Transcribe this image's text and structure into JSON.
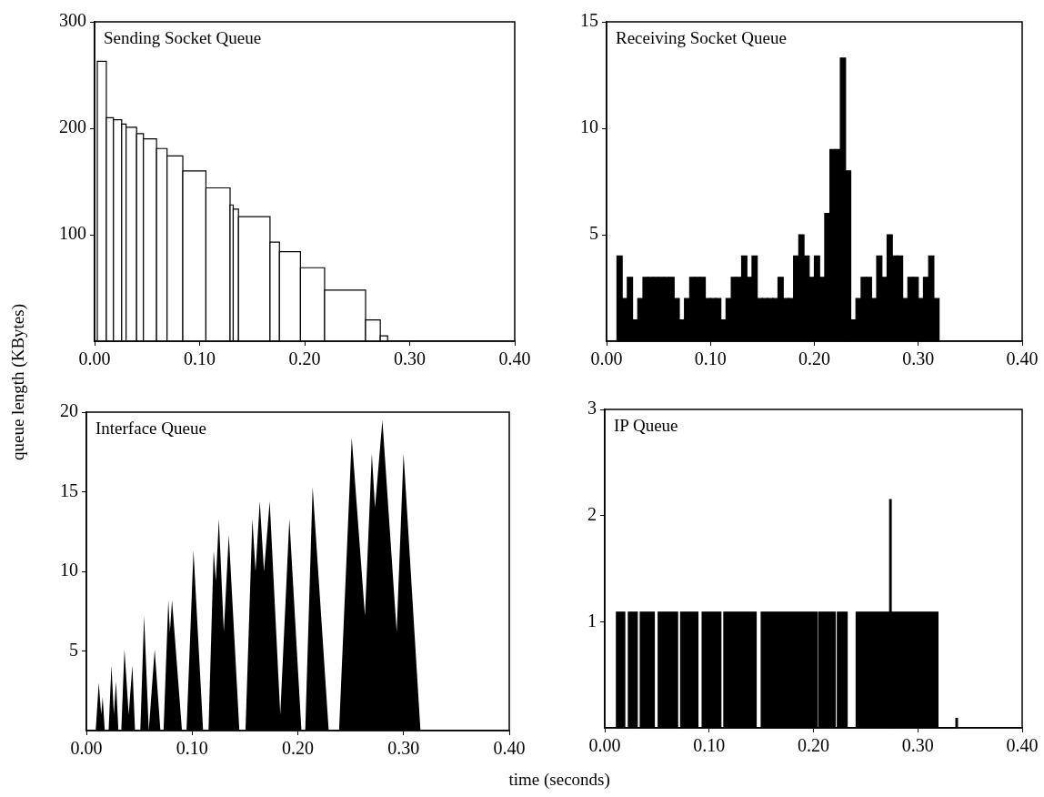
{
  "chart_data": [
    {
      "type": "histogram",
      "title": "Sending Socket Queue",
      "ylabel": "queue length (KBytes)",
      "color": "#ffffff",
      "bins": [
        0.0026,
        0.0112,
        0.018,
        0.0258,
        0.03,
        0.04,
        0.0465,
        0.059,
        0.069,
        0.084,
        0.106,
        0.129,
        0.132,
        0.137,
        0.167,
        0.176,
        0.196,
        0.219,
        0.258,
        0.272,
        0.279
      ],
      "values": [
        263,
        210,
        208,
        204,
        201,
        195,
        190,
        181,
        174,
        160,
        144,
        128,
        124,
        117,
        93,
        84,
        69,
        48,
        20,
        5
      ],
      "xlim": [
        0,
        0.4
      ],
      "xticks": [
        {
          "value": 0,
          "label": "0.00"
        },
        {
          "value": 0.1,
          "label": "0.10"
        },
        {
          "value": 0.2,
          "label": "0.20"
        },
        {
          "value": 0.3,
          "label": "0.30"
        },
        {
          "value": 0.4,
          "label": "0.40"
        }
      ],
      "ylim": [
        0,
        300
      ],
      "yticks": [
        100,
        200,
        300
      ]
    },
    {
      "type": "histogram",
      "title": "Receiving Socket Queue",
      "color": "#000000",
      "bins": [
        0.01,
        0.015,
        0.02,
        0.025,
        0.03,
        0.035,
        0.04,
        0.045,
        0.05,
        0.055,
        0.06,
        0.065,
        0.07,
        0.075,
        0.08,
        0.085,
        0.09,
        0.095,
        0.1,
        0.105,
        0.11,
        0.115,
        0.12,
        0.125,
        0.13,
        0.135,
        0.14,
        0.145,
        0.15,
        0.155,
        0.16,
        0.165,
        0.17,
        0.175,
        0.18,
        0.185,
        0.19,
        0.195,
        0.2,
        0.205,
        0.21,
        0.215,
        0.22,
        0.225,
        0.23,
        0.235,
        0.24,
        0.245,
        0.25,
        0.255,
        0.26,
        0.265,
        0.27,
        0.275,
        0.28,
        0.285,
        0.29,
        0.295,
        0.3,
        0.305,
        0.31,
        0.315,
        0.32
      ],
      "values": [
        4,
        2,
        3,
        1,
        2,
        3,
        3,
        3,
        3,
        3,
        3,
        2,
        1,
        2,
        3,
        3,
        3,
        2,
        2,
        2,
        1,
        2,
        3,
        3,
        4,
        3,
        4,
        2,
        2,
        2,
        2,
        3,
        2,
        2,
        4,
        5,
        4,
        3,
        4,
        3,
        6,
        9,
        9,
        13.3,
        8,
        1,
        2,
        3,
        3,
        2,
        4,
        3,
        5,
        4,
        4,
        2,
        3,
        3,
        2,
        3,
        4,
        2
      ],
      "xlim": [
        0,
        0.4
      ],
      "xticks": [
        {
          "value": 0,
          "label": "0.00"
        },
        {
          "value": 0.1,
          "label": "0.10"
        },
        {
          "value": 0.2,
          "label": "0.20"
        },
        {
          "value": 0.3,
          "label": "0.30"
        },
        {
          "value": 0.4,
          "label": "0.40"
        }
      ],
      "ylim": [
        0,
        15
      ],
      "yticks": [
        5,
        10,
        15
      ]
    },
    {
      "type": "area",
      "title": "Interface Queue",
      "xlabel": "time (seconds)",
      "color": "#000000",
      "x": [
        0,
        0.0088,
        0.0117,
        0.014,
        0.0154,
        0.0174,
        0.021,
        0.0237,
        0.026,
        0.028,
        0.0303,
        0.033,
        0.036,
        0.04,
        0.0435,
        0.046,
        0.051,
        0.0546,
        0.059,
        0.0646,
        0.07,
        0.073,
        0.0775,
        0.079,
        0.081,
        0.0904,
        0.0947,
        0.1013,
        0.1104,
        0.1155,
        0.1204,
        0.1225,
        0.1253,
        0.13,
        0.1347,
        0.1447,
        0.1505,
        0.157,
        0.16,
        0.164,
        0.168,
        0.1734,
        0.1834,
        0.192,
        0.2034,
        0.207,
        0.214,
        0.2292,
        0.239,
        0.251,
        0.2635,
        0.27,
        0.273,
        0.28,
        0.2935,
        0.3,
        0.316,
        0.4
      ],
      "values": [
        0,
        0,
        3.0,
        1,
        2.1,
        0,
        0,
        4.1,
        1,
        3.1,
        0,
        0,
        5.1,
        1,
        4.1,
        0,
        0,
        7.2,
        0,
        5.1,
        0,
        0,
        8.2,
        6.2,
        8.2,
        0,
        0,
        11.3,
        0,
        0,
        11.3,
        9.4,
        13.3,
        6.2,
        12.3,
        0,
        0,
        13.3,
        10,
        14.4,
        10,
        14.4,
        1,
        13.3,
        0,
        0,
        15.3,
        0,
        0,
        18.4,
        7.2,
        17.4,
        14,
        19.5,
        6.2,
        17.4,
        0,
        0
      ],
      "xlim": [
        0,
        0.4
      ],
      "xticks": [
        {
          "value": 0,
          "label": "0.00"
        },
        {
          "value": 0.1,
          "label": "0.10"
        },
        {
          "value": 0.2,
          "label": "0.20"
        },
        {
          "value": 0.3,
          "label": "0.30"
        },
        {
          "value": 0.4,
          "label": "0.40"
        }
      ],
      "ylim": [
        0,
        20
      ],
      "yticks": [
        5,
        10,
        15,
        20
      ]
    },
    {
      "type": "histogram",
      "title": "IP Queue",
      "color": "#000000",
      "bins": [
        0.0112,
        0.0192,
        0.0226,
        0.0312,
        0.034,
        0.0475,
        0.0512,
        0.0698,
        0.0727,
        0.0893,
        0.0933,
        0.1113,
        0.1141,
        0.1451,
        0.1499,
        0.2037,
        0.2051,
        0.2209,
        0.2229,
        0.2323,
        0.2409,
        0.273,
        0.2745,
        0.3193,
        0.3365,
        0.338
      ],
      "values": [
        1.09,
        0,
        1.09,
        0,
        1.09,
        0,
        1.09,
        0,
        1.09,
        0,
        1.09,
        0,
        1.09,
        0,
        1.09,
        0,
        1.09,
        0,
        1.09,
        0,
        1.09,
        2.15,
        1.09,
        0,
        0.09
      ],
      "xlim": [
        0,
        0.4
      ],
      "xticks": [
        {
          "value": 0,
          "label": "0.00"
        },
        {
          "value": 0.1,
          "label": "0.10"
        },
        {
          "value": 0.2,
          "label": "0.20"
        },
        {
          "value": 0.3,
          "label": "0.30"
        },
        {
          "value": 0.4,
          "label": "0.40"
        }
      ],
      "ylim": [
        0,
        3
      ],
      "yticks": [
        1,
        2,
        3
      ]
    }
  ]
}
